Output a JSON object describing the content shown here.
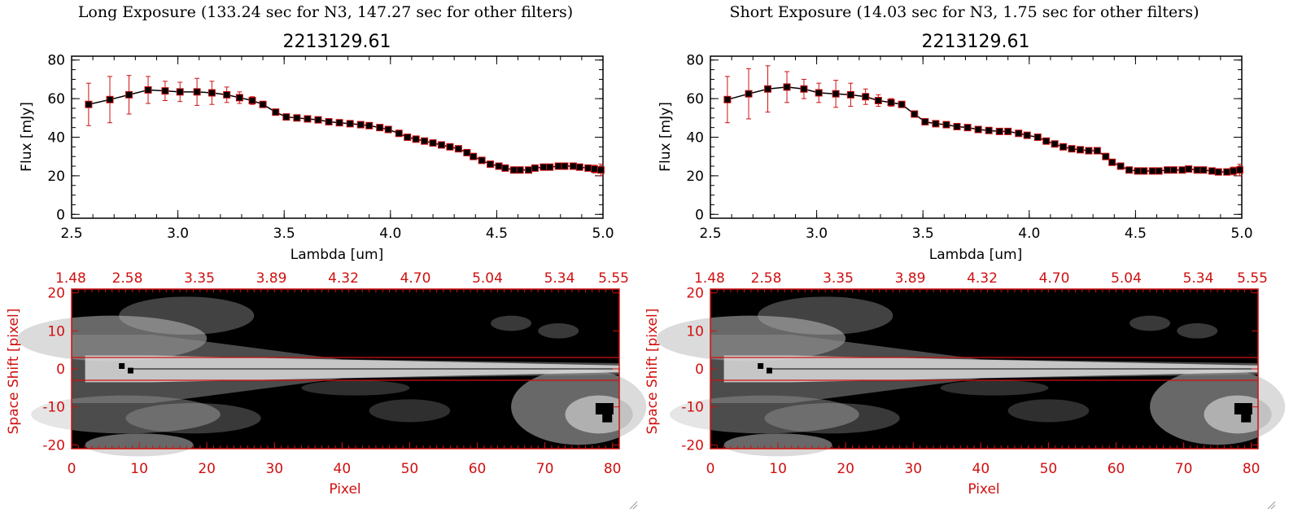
{
  "colors": {
    "ink": "#000000",
    "accent": "#d01010",
    "image_bg": "#000000"
  },
  "panels": [
    {
      "title": "Long Exposure (133.24 sec for N3, 147.27 sec for other filters)",
      "chart_title": "2213129.61",
      "xlabel": "Lambda [um]",
      "ylabel": "Flux [mJy]",
      "image_xlabel": "Pixel",
      "image_ylabel": "Space Shift [pixel]"
    },
    {
      "title": "Short Exposure (14.03 sec for N3, 1.75 sec for other filters)",
      "chart_title": "2213129.61",
      "xlabel": "Lambda [um]",
      "ylabel": "Flux [mJy]",
      "image_xlabel": "Pixel",
      "image_ylabel": "Space Shift [pixel]"
    }
  ],
  "chart_data": [
    {
      "type": "scatter",
      "title": "2213129.61",
      "xlabel": "Lambda [um]",
      "ylabel": "Flux [mJy]",
      "xlim": [
        2.5,
        5.0
      ],
      "ylim": [
        -2,
        82
      ],
      "xticks": [
        "2.5",
        "3.0",
        "3.5",
        "4.0",
        "4.5",
        "5.0"
      ],
      "yticks": [
        "0",
        "20",
        "40",
        "60",
        "80"
      ],
      "series": [
        {
          "name": "Long Exposure",
          "x": [
            2.58,
            2.68,
            2.77,
            2.86,
            2.94,
            3.01,
            3.09,
            3.16,
            3.23,
            3.29,
            3.35,
            3.4,
            3.46,
            3.51,
            3.56,
            3.61,
            3.66,
            3.71,
            3.76,
            3.81,
            3.86,
            3.9,
            3.95,
            3.99,
            4.04,
            4.08,
            4.12,
            4.16,
            4.2,
            4.24,
            4.28,
            4.32,
            4.36,
            4.39,
            4.43,
            4.47,
            4.51,
            4.54,
            4.58,
            4.61,
            4.65,
            4.68,
            4.72,
            4.75,
            4.79,
            4.82,
            4.86,
            4.89,
            4.93,
            4.96,
            4.99
          ],
          "y": [
            57,
            59.5,
            62,
            64.5,
            64,
            63.5,
            63.5,
            63,
            62,
            60.5,
            59,
            57,
            53,
            50.5,
            50,
            49.5,
            49,
            48,
            47.5,
            47,
            46.5,
            46,
            45,
            44,
            42,
            40,
            39,
            38,
            37,
            36,
            35,
            34,
            32,
            30,
            28,
            26,
            25,
            24,
            23,
            23,
            23,
            24,
            24.5,
            24.5,
            25,
            25,
            25,
            24.5,
            24,
            23.5,
            23
          ],
          "err": [
            11,
            12,
            10,
            7,
            5,
            5,
            7,
            6,
            4,
            3,
            2,
            1.5,
            1,
            1,
            1,
            1,
            1,
            1,
            1,
            1,
            1,
            1,
            1,
            1,
            1,
            1,
            1,
            1,
            1,
            1,
            1,
            1,
            1,
            1,
            1,
            1,
            1,
            1,
            1,
            1,
            1,
            1,
            1,
            1,
            1,
            1,
            1,
            1,
            1.5,
            2,
            3
          ]
        }
      ],
      "image": {
        "type": "heatmap",
        "xlabel": "Pixel",
        "ylabel": "Space Shift [pixel]",
        "xlim": [
          0,
          81
        ],
        "ylim": [
          -21,
          21
        ],
        "xticks": [
          "0",
          "10",
          "20",
          "30",
          "40",
          "50",
          "60",
          "70",
          "80"
        ],
        "yticks": [
          "20",
          "10",
          "0",
          "-10",
          "-20"
        ],
        "top_ticks": [
          "1.48",
          "2.58",
          "3.35",
          "3.89",
          "4.32",
          "4.70",
          "5.04",
          "5.34",
          "5.55"
        ],
        "aperture_lines": [
          3,
          -3
        ]
      }
    },
    {
      "type": "scatter",
      "title": "2213129.61",
      "xlabel": "Lambda [um]",
      "ylabel": "Flux [mJy]",
      "xlim": [
        2.5,
        5.0
      ],
      "ylim": [
        -2,
        82
      ],
      "xticks": [
        "2.5",
        "3.0",
        "3.5",
        "4.0",
        "4.5",
        "5.0"
      ],
      "yticks": [
        "0",
        "20",
        "40",
        "60",
        "80"
      ],
      "series": [
        {
          "name": "Short Exposure",
          "x": [
            2.58,
            2.68,
            2.77,
            2.86,
            2.94,
            3.01,
            3.09,
            3.16,
            3.23,
            3.29,
            3.35,
            3.4,
            3.46,
            3.51,
            3.56,
            3.61,
            3.66,
            3.71,
            3.76,
            3.81,
            3.86,
            3.9,
            3.95,
            3.99,
            4.04,
            4.08,
            4.12,
            4.16,
            4.2,
            4.24,
            4.28,
            4.32,
            4.36,
            4.39,
            4.43,
            4.47,
            4.51,
            4.54,
            4.58,
            4.61,
            4.65,
            4.68,
            4.72,
            4.75,
            4.79,
            4.82,
            4.86,
            4.89,
            4.93,
            4.96,
            4.99
          ],
          "y": [
            59.5,
            62.5,
            65,
            66,
            65,
            63,
            62.5,
            62,
            61,
            59,
            58,
            57,
            52,
            48,
            47,
            46.5,
            45.5,
            45,
            44,
            43.5,
            43,
            43,
            42,
            41,
            40,
            38,
            36.5,
            35,
            34,
            33.5,
            33,
            33,
            30,
            27,
            25,
            23,
            22.5,
            22.5,
            22.5,
            22.5,
            23,
            23,
            23,
            23.5,
            23,
            23,
            22.5,
            22,
            22,
            22.5,
            23
          ],
          "err": [
            12,
            13,
            12,
            8,
            5,
            5,
            7,
            6,
            4,
            3,
            2,
            1.5,
            1,
            1,
            1,
            1,
            1,
            1,
            1,
            1,
            1,
            1,
            1,
            1,
            1,
            1,
            1,
            1,
            1,
            1,
            1,
            1,
            1,
            1,
            1,
            1,
            1,
            1,
            1,
            1,
            1,
            1,
            1,
            1,
            1,
            1,
            1,
            1,
            1.5,
            2,
            3
          ]
        }
      ],
      "image": {
        "type": "heatmap",
        "xlabel": "Pixel",
        "ylabel": "Space Shift [pixel]",
        "xlim": [
          0,
          81
        ],
        "ylim": [
          -21,
          21
        ],
        "xticks": [
          "0",
          "10",
          "20",
          "30",
          "40",
          "50",
          "60",
          "70",
          "80"
        ],
        "yticks": [
          "20",
          "10",
          "0",
          "-10",
          "-20"
        ],
        "top_ticks": [
          "1.48",
          "2.58",
          "3.35",
          "3.89",
          "4.32",
          "4.70",
          "5.04",
          "5.34",
          "5.55"
        ],
        "aperture_lines": [
          3,
          -3
        ]
      }
    }
  ]
}
